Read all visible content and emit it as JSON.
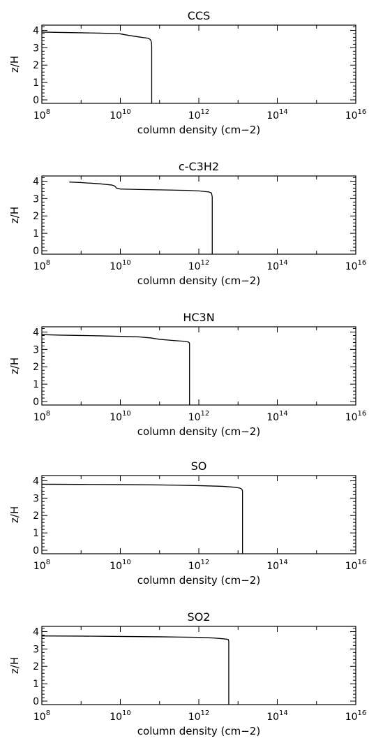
{
  "chart_data": [
    {
      "type": "line",
      "title": "CCS",
      "xlabel": "column density (cm−2)",
      "ylabel": "z/H",
      "xscale": "log",
      "xlim": [
        100000000.0,
        1e+16
      ],
      "ylim": [
        -0.2,
        4.3
      ],
      "xticks": [
        {
          "base": "10",
          "exp": "8"
        },
        {
          "base": "10",
          "exp": "10"
        },
        {
          "base": "10",
          "exp": "12"
        },
        {
          "base": "10",
          "exp": "14"
        },
        {
          "base": "10",
          "exp": "16"
        }
      ],
      "yticks": [
        "0",
        "1",
        "2",
        "3",
        "4"
      ],
      "series": [
        {
          "x": [
            100000000.0,
            300000000.0,
            1000000000.0,
            3000000000.0,
            10000000000.0,
            13000000000.0,
            20000000000.0,
            30000000000.0,
            40000000000.0,
            50000000000.0,
            56000000000.0,
            60000000000.0,
            62000000000.0,
            63000000000.0,
            63000000000.0
          ],
          "y": [
            3.9,
            3.88,
            3.86,
            3.84,
            3.8,
            3.75,
            3.68,
            3.62,
            3.58,
            3.55,
            3.5,
            3.42,
            3.3,
            3.1,
            -0.2
          ]
        }
      ]
    },
    {
      "type": "line",
      "title": "c-C3H2",
      "xlabel": "column density (cm−2)",
      "ylabel": "z/H",
      "xscale": "log",
      "xlim": [
        100000000.0,
        1e+16
      ],
      "ylim": [
        -0.2,
        4.3
      ],
      "xticks": [
        {
          "base": "10",
          "exp": "8"
        },
        {
          "base": "10",
          "exp": "10"
        },
        {
          "base": "10",
          "exp": "12"
        },
        {
          "base": "10",
          "exp": "14"
        },
        {
          "base": "10",
          "exp": "16"
        }
      ],
      "yticks": [
        "0",
        "1",
        "2",
        "3",
        "4"
      ],
      "series": [
        {
          "x": [
            500000000.0,
            1000000000.0,
            3000000000.0,
            6000000000.0,
            7200000000.0,
            8000000000.0,
            10000000000.0,
            30000000000.0,
            100000000000.0,
            500000000000.0,
            1000000000000.0,
            1800000000000.0,
            2100000000000.0,
            2200000000000.0,
            2200000000000.0
          ],
          "y": [
            3.95,
            3.92,
            3.85,
            3.78,
            3.72,
            3.6,
            3.55,
            3.52,
            3.5,
            3.47,
            3.44,
            3.38,
            3.32,
            3.1,
            -0.2
          ]
        }
      ]
    },
    {
      "type": "line",
      "title": "HC3N",
      "xlabel": "column density (cm−2)",
      "ylabel": "z/H",
      "xscale": "log",
      "xlim": [
        100000000.0,
        1e+16
      ],
      "ylim": [
        -0.2,
        4.3
      ],
      "xticks": [
        {
          "base": "10",
          "exp": "8"
        },
        {
          "base": "10",
          "exp": "10"
        },
        {
          "base": "10",
          "exp": "12"
        },
        {
          "base": "10",
          "exp": "14"
        },
        {
          "base": "10",
          "exp": "16"
        }
      ],
      "yticks": [
        "0",
        "1",
        "2",
        "3",
        "4"
      ],
      "series": [
        {
          "x": [
            100000000.0,
            300000000.0,
            1000000000.0,
            3000000000.0,
            10000000000.0,
            30000000000.0,
            60000000000.0,
            100000000000.0,
            200000000000.0,
            400000000000.0,
            550000000000.0,
            580000000000.0,
            580000000000.0
          ],
          "y": [
            3.85,
            3.82,
            3.8,
            3.78,
            3.75,
            3.72,
            3.66,
            3.58,
            3.52,
            3.47,
            3.42,
            3.35,
            -0.2
          ]
        }
      ]
    },
    {
      "type": "line",
      "title": "SO",
      "xlabel": "column density (cm−2)",
      "ylabel": "z/H",
      "xscale": "log",
      "xlim": [
        100000000.0,
        1e+16
      ],
      "ylim": [
        -0.2,
        4.3
      ],
      "xticks": [
        {
          "base": "10",
          "exp": "8"
        },
        {
          "base": "10",
          "exp": "10"
        },
        {
          "base": "10",
          "exp": "12"
        },
        {
          "base": "10",
          "exp": "14"
        },
        {
          "base": "10",
          "exp": "16"
        }
      ],
      "yticks": [
        "0",
        "1",
        "2",
        "3",
        "4"
      ],
      "series": [
        {
          "x": [
            100000000.0,
            1000000000.0,
            10000000000.0,
            100000000000.0,
            1000000000000.0,
            4000000000000.0,
            8000000000000.0,
            11000000000000.0,
            12500000000000.0,
            13000000000000.0,
            13000000000000.0
          ],
          "y": [
            3.8,
            3.79,
            3.78,
            3.76,
            3.72,
            3.68,
            3.63,
            3.58,
            3.52,
            3.4,
            -0.2
          ]
        }
      ]
    },
    {
      "type": "line",
      "title": "SO2",
      "xlabel": "column density (cm−2)",
      "ylabel": "z/H",
      "xscale": "log",
      "xlim": [
        100000000.0,
        1e+16
      ],
      "ylim": [
        -0.2,
        4.3
      ],
      "xticks": [
        {
          "base": "10",
          "exp": "8"
        },
        {
          "base": "10",
          "exp": "10"
        },
        {
          "base": "10",
          "exp": "12"
        },
        {
          "base": "10",
          "exp": "14"
        },
        {
          "base": "10",
          "exp": "16"
        }
      ],
      "yticks": [
        "0",
        "1",
        "2",
        "3",
        "4"
      ],
      "series": [
        {
          "x": [
            100000000.0,
            1000000000.0,
            10000000000.0,
            100000000000.0,
            1000000000000.0,
            2500000000000.0,
            4500000000000.0,
            5600000000000.0,
            5800000000000.0,
            5800000000000.0
          ],
          "y": [
            3.75,
            3.74,
            3.72,
            3.7,
            3.67,
            3.63,
            3.58,
            3.55,
            3.45,
            -0.2
          ]
        }
      ]
    }
  ]
}
